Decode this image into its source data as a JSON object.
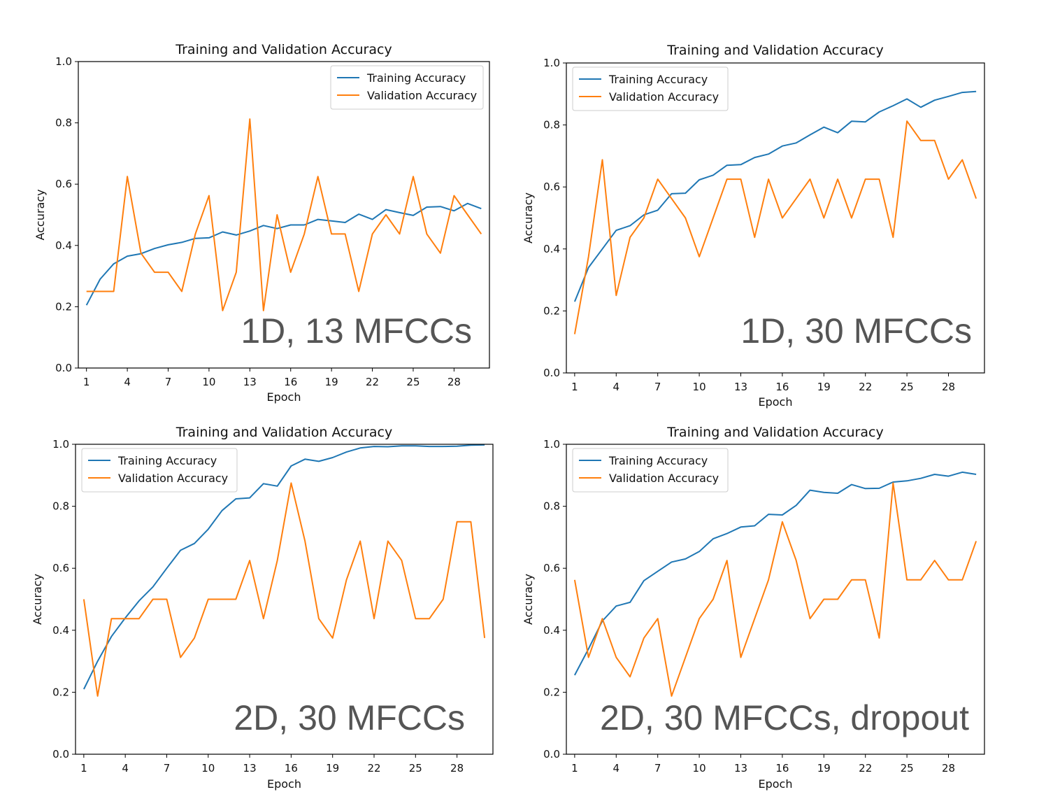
{
  "colors": {
    "training": "#1f77b4",
    "validation": "#ff7f0e",
    "overlay": "#555555"
  },
  "chart_data": [
    {
      "type": "line",
      "title": "Training and Validation Accuracy",
      "overlay_label": "1D, 13 MFCCs",
      "xlabel": "Epoch",
      "ylabel": "Accuracy",
      "xlim": [
        0.4,
        30.6
      ],
      "ylim": [
        0,
        1
      ],
      "xticks": [
        "1",
        "4",
        "7",
        "10",
        "13",
        "16",
        "19",
        "22",
        "25",
        "28"
      ],
      "yticks": [
        "0.0",
        "0.2",
        "0.4",
        "0.6",
        "0.8",
        "1.0"
      ],
      "legend_position": "top-right",
      "x": [
        1,
        2,
        3,
        4,
        5,
        6,
        7,
        8,
        9,
        10,
        11,
        12,
        13,
        14,
        15,
        16,
        17,
        18,
        19,
        20,
        21,
        22,
        23,
        24,
        25,
        26,
        27,
        28,
        29,
        30
      ],
      "series": [
        {
          "name": "Training Accuracy",
          "values": [
            0.205,
            0.29,
            0.34,
            0.365,
            0.373,
            0.39,
            0.402,
            0.41,
            0.423,
            0.425,
            0.444,
            0.434,
            0.447,
            0.465,
            0.455,
            0.467,
            0.467,
            0.485,
            0.48,
            0.475,
            0.502,
            0.485,
            0.517,
            0.507,
            0.498,
            0.525,
            0.527,
            0.513,
            0.537,
            0.52
          ]
        },
        {
          "name": "Validation Accuracy",
          "values": [
            0.25,
            0.25,
            0.25,
            0.625,
            0.375,
            0.3125,
            0.3125,
            0.25,
            0.4375,
            0.5625,
            0.1875,
            0.3125,
            0.8125,
            0.1875,
            0.5,
            0.3125,
            0.4375,
            0.625,
            0.4375,
            0.4375,
            0.25,
            0.4375,
            0.5,
            0.4375,
            0.625,
            0.4375,
            0.375,
            0.5625,
            0.5,
            0.4375
          ]
        }
      ]
    },
    {
      "type": "line",
      "title": "Training and Validation Accuracy",
      "overlay_label": "1D, 30 MFCCs",
      "xlabel": "Epoch",
      "ylabel": "Accuracy",
      "xlim": [
        0.4,
        30.6
      ],
      "ylim": [
        0,
        1
      ],
      "xticks": [
        "1",
        "4",
        "7",
        "10",
        "13",
        "16",
        "19",
        "22",
        "25",
        "28"
      ],
      "yticks": [
        "0.0",
        "0.2",
        "0.4",
        "0.6",
        "0.8",
        "1.0"
      ],
      "legend_position": "top-left",
      "x": [
        1,
        2,
        3,
        4,
        5,
        6,
        7,
        8,
        9,
        10,
        11,
        12,
        13,
        14,
        15,
        16,
        17,
        18,
        19,
        20,
        21,
        22,
        23,
        24,
        25,
        26,
        27,
        28,
        29,
        30
      ],
      "series": [
        {
          "name": "Training Accuracy",
          "values": [
            0.23,
            0.34,
            0.4,
            0.46,
            0.475,
            0.51,
            0.525,
            0.578,
            0.58,
            0.623,
            0.638,
            0.67,
            0.672,
            0.695,
            0.706,
            0.732,
            0.742,
            0.768,
            0.793,
            0.775,
            0.812,
            0.81,
            0.842,
            0.862,
            0.884,
            0.857,
            0.88,
            0.892,
            0.905,
            0.908
          ]
        },
        {
          "name": "Validation Accuracy",
          "values": [
            0.125,
            0.375,
            0.6875,
            0.25,
            0.4375,
            0.5,
            0.625,
            0.5625,
            0.5,
            0.375,
            0.5,
            0.625,
            0.625,
            0.4375,
            0.625,
            0.5,
            0.5625,
            0.625,
            0.5,
            0.625,
            0.5,
            0.625,
            0.625,
            0.4375,
            0.8125,
            0.75,
            0.75,
            0.625,
            0.6875,
            0.5625
          ]
        }
      ]
    },
    {
      "type": "line",
      "title": "Training and Validation Accuracy",
      "overlay_label": "2D, 30 MFCCs",
      "xlabel": "Epoch",
      "ylabel": "Accuracy",
      "xlim": [
        0.4,
        30.6
      ],
      "ylim": [
        0,
        1
      ],
      "xticks": [
        "1",
        "4",
        "7",
        "10",
        "13",
        "16",
        "19",
        "22",
        "25",
        "28"
      ],
      "yticks": [
        "0.0",
        "0.2",
        "0.4",
        "0.6",
        "0.8",
        "1.0"
      ],
      "legend_position": "top-left",
      "x": [
        1,
        2,
        3,
        4,
        5,
        6,
        7,
        8,
        9,
        10,
        11,
        12,
        13,
        14,
        15,
        16,
        17,
        18,
        19,
        20,
        21,
        22,
        23,
        24,
        25,
        26,
        27,
        28,
        29,
        30
      ],
      "series": [
        {
          "name": "Training Accuracy",
          "values": [
            0.21,
            0.3,
            0.38,
            0.44,
            0.495,
            0.54,
            0.6,
            0.658,
            0.68,
            0.726,
            0.786,
            0.824,
            0.827,
            0.873,
            0.865,
            0.93,
            0.952,
            0.945,
            0.957,
            0.975,
            0.988,
            0.993,
            0.992,
            0.995,
            0.995,
            0.993,
            0.993,
            0.994,
            0.997,
            0.998
          ]
        },
        {
          "name": "Validation Accuracy",
          "values": [
            0.5,
            0.1875,
            0.4375,
            0.4375,
            0.4375,
            0.5,
            0.5,
            0.3125,
            0.375,
            0.5,
            0.5,
            0.5,
            0.625,
            0.4375,
            0.625,
            0.875,
            0.6875,
            0.4375,
            0.375,
            0.5625,
            0.6875,
            0.4375,
            0.6875,
            0.625,
            0.4375,
            0.4375,
            0.5,
            0.75,
            0.75,
            0.375
          ]
        }
      ]
    },
    {
      "type": "line",
      "title": "Training and Validation Accuracy",
      "overlay_label": "2D, 30 MFCCs, dropout",
      "xlabel": "Epoch",
      "ylabel": "Accuracy",
      "xlim": [
        0.4,
        30.6
      ],
      "ylim": [
        0,
        1
      ],
      "xticks": [
        "1",
        "4",
        "7",
        "10",
        "13",
        "16",
        "19",
        "22",
        "25",
        "28"
      ],
      "yticks": [
        "0.0",
        "0.2",
        "0.4",
        "0.6",
        "0.8",
        "1.0"
      ],
      "legend_position": "top-left",
      "x": [
        1,
        2,
        3,
        4,
        5,
        6,
        7,
        8,
        9,
        10,
        11,
        12,
        13,
        14,
        15,
        16,
        17,
        18,
        19,
        20,
        21,
        22,
        23,
        24,
        25,
        26,
        27,
        28,
        29,
        30
      ],
      "series": [
        {
          "name": "Training Accuracy",
          "values": [
            0.255,
            0.34,
            0.43,
            0.478,
            0.49,
            0.56,
            0.59,
            0.62,
            0.63,
            0.654,
            0.695,
            0.712,
            0.733,
            0.737,
            0.774,
            0.772,
            0.803,
            0.852,
            0.845,
            0.842,
            0.87,
            0.857,
            0.858,
            0.878,
            0.882,
            0.89,
            0.903,
            0.897,
            0.91,
            0.903
          ]
        },
        {
          "name": "Validation Accuracy",
          "values": [
            0.5625,
            0.3125,
            0.4375,
            0.3125,
            0.25,
            0.375,
            0.4375,
            0.1875,
            0.3125,
            0.4375,
            0.5,
            0.625,
            0.3125,
            0.4375,
            0.5625,
            0.75,
            0.625,
            0.4375,
            0.5,
            0.5,
            0.5625,
            0.5625,
            0.375,
            0.875,
            0.5625,
            0.5625,
            0.625,
            0.5625,
            0.5625,
            0.6875
          ]
        }
      ]
    }
  ]
}
